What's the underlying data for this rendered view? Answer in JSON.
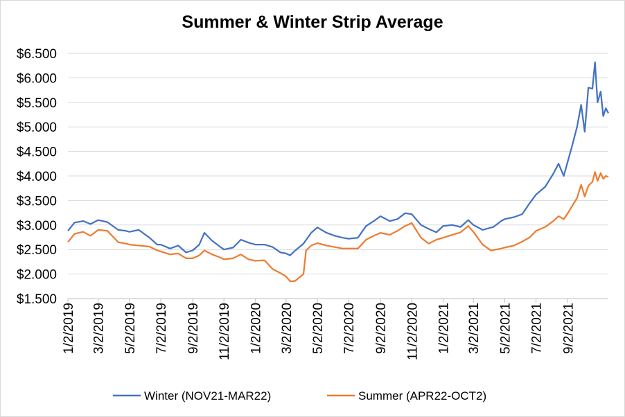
{
  "chart_data": {
    "type": "line",
    "title": "Summer & Winter Strip Average",
    "xlabel": "",
    "ylabel": "",
    "ylim": [
      1.5,
      6.5
    ],
    "y_ticks": [
      "$1.500",
      "$2.000",
      "$2.500",
      "$3.000",
      "$3.500",
      "$4.000",
      "$4.500",
      "$5.000",
      "$5.500",
      "$6.000",
      "$6.500"
    ],
    "x_ticks": [
      "1/2/2019",
      "3/2/2019",
      "5/2/2019",
      "7/2/2019",
      "9/2/2019",
      "11/2/2019",
      "1/2/2020",
      "3/2/2020",
      "5/2/2020",
      "7/2/2020",
      "9/2/2020",
      "11/2/2020",
      "1/2/2021",
      "3/2/2021",
      "5/2/2021",
      "7/2/2021",
      "9/2/2021"
    ],
    "xlim": [
      "2019-01-02",
      "2021-11-20"
    ],
    "grid": "horizontal",
    "legend_position": "bottom",
    "series": [
      {
        "name": "Winter (NOV21-MAR22)",
        "color": "#4472c4",
        "points": [
          [
            "2019-01-02",
            2.88
          ],
          [
            "2019-01-15",
            3.05
          ],
          [
            "2019-02-01",
            3.08
          ],
          [
            "2019-02-15",
            3.02
          ],
          [
            "2019-03-02",
            3.1
          ],
          [
            "2019-03-20",
            3.06
          ],
          [
            "2019-04-10",
            2.9
          ],
          [
            "2019-04-25",
            2.88
          ],
          [
            "2019-05-02",
            2.86
          ],
          [
            "2019-05-20",
            2.9
          ],
          [
            "2019-06-10",
            2.74
          ],
          [
            "2019-06-25",
            2.6
          ],
          [
            "2019-07-02",
            2.6
          ],
          [
            "2019-07-20",
            2.52
          ],
          [
            "2019-08-05",
            2.58
          ],
          [
            "2019-08-20",
            2.44
          ],
          [
            "2019-09-02",
            2.48
          ],
          [
            "2019-09-15",
            2.6
          ],
          [
            "2019-09-25",
            2.84
          ],
          [
            "2019-10-10",
            2.68
          ],
          [
            "2019-10-25",
            2.56
          ],
          [
            "2019-11-02",
            2.5
          ],
          [
            "2019-11-20",
            2.54
          ],
          [
            "2019-12-05",
            2.7
          ],
          [
            "2019-12-20",
            2.64
          ],
          [
            "2020-01-02",
            2.6
          ],
          [
            "2020-01-20",
            2.6
          ],
          [
            "2020-02-05",
            2.55
          ],
          [
            "2020-02-20",
            2.44
          ],
          [
            "2020-03-02",
            2.42
          ],
          [
            "2020-03-10",
            2.38
          ],
          [
            "2020-03-20",
            2.48
          ],
          [
            "2020-04-05",
            2.62
          ],
          [
            "2020-04-20",
            2.84
          ],
          [
            "2020-05-02",
            2.95
          ],
          [
            "2020-05-20",
            2.84
          ],
          [
            "2020-06-05",
            2.78
          ],
          [
            "2020-06-20",
            2.74
          ],
          [
            "2020-07-02",
            2.72
          ],
          [
            "2020-07-20",
            2.74
          ],
          [
            "2020-08-05",
            2.98
          ],
          [
            "2020-08-20",
            3.08
          ],
          [
            "2020-09-02",
            3.18
          ],
          [
            "2020-09-20",
            3.08
          ],
          [
            "2020-10-05",
            3.12
          ],
          [
            "2020-10-20",
            3.24
          ],
          [
            "2020-11-02",
            3.22
          ],
          [
            "2020-11-20",
            3.0
          ],
          [
            "2020-12-05",
            2.92
          ],
          [
            "2020-12-20",
            2.85
          ],
          [
            "2021-01-02",
            2.98
          ],
          [
            "2021-01-20",
            3.0
          ],
          [
            "2021-02-05",
            2.96
          ],
          [
            "2021-02-20",
            3.1
          ],
          [
            "2021-03-02",
            3.0
          ],
          [
            "2021-03-20",
            2.9
          ],
          [
            "2021-04-10",
            2.96
          ],
          [
            "2021-04-25",
            3.08
          ],
          [
            "2021-05-02",
            3.12
          ],
          [
            "2021-05-20",
            3.16
          ],
          [
            "2021-06-05",
            3.22
          ],
          [
            "2021-06-20",
            3.45
          ],
          [
            "2021-07-02",
            3.62
          ],
          [
            "2021-07-20",
            3.78
          ],
          [
            "2021-08-05",
            4.05
          ],
          [
            "2021-08-15",
            4.25
          ],
          [
            "2021-08-25",
            4.0
          ],
          [
            "2021-09-02",
            4.3
          ],
          [
            "2021-09-10",
            4.6
          ],
          [
            "2021-09-20",
            5.0
          ],
          [
            "2021-09-28",
            5.45
          ],
          [
            "2021-10-05",
            4.9
          ],
          [
            "2021-10-12",
            5.8
          ],
          [
            "2021-10-20",
            5.78
          ],
          [
            "2021-10-25",
            6.32
          ],
          [
            "2021-10-30",
            5.5
          ],
          [
            "2021-11-05",
            5.72
          ],
          [
            "2021-11-10",
            5.22
          ],
          [
            "2021-11-15",
            5.38
          ],
          [
            "2021-11-20",
            5.28
          ]
        ]
      },
      {
        "name": "Summer  (APR22-OCT2)",
        "color": "#ed7d31",
        "points": [
          [
            "2019-01-02",
            2.65
          ],
          [
            "2019-01-15",
            2.82
          ],
          [
            "2019-02-01",
            2.86
          ],
          [
            "2019-02-15",
            2.78
          ],
          [
            "2019-03-02",
            2.9
          ],
          [
            "2019-03-20",
            2.88
          ],
          [
            "2019-04-10",
            2.65
          ],
          [
            "2019-04-25",
            2.62
          ],
          [
            "2019-05-02",
            2.6
          ],
          [
            "2019-05-20",
            2.58
          ],
          [
            "2019-06-10",
            2.56
          ],
          [
            "2019-06-25",
            2.48
          ],
          [
            "2019-07-02",
            2.46
          ],
          [
            "2019-07-20",
            2.4
          ],
          [
            "2019-08-05",
            2.42
          ],
          [
            "2019-08-20",
            2.32
          ],
          [
            "2019-09-02",
            2.32
          ],
          [
            "2019-09-15",
            2.38
          ],
          [
            "2019-09-25",
            2.48
          ],
          [
            "2019-10-10",
            2.4
          ],
          [
            "2019-10-25",
            2.34
          ],
          [
            "2019-11-02",
            2.3
          ],
          [
            "2019-11-20",
            2.32
          ],
          [
            "2019-12-05",
            2.4
          ],
          [
            "2019-12-20",
            2.3
          ],
          [
            "2020-01-02",
            2.27
          ],
          [
            "2020-01-20",
            2.28
          ],
          [
            "2020-02-05",
            2.1
          ],
          [
            "2020-02-20",
            2.02
          ],
          [
            "2020-03-02",
            1.95
          ],
          [
            "2020-03-10",
            1.85
          ],
          [
            "2020-03-20",
            1.86
          ],
          [
            "2020-04-05",
            2.0
          ],
          [
            "2020-04-10",
            2.48
          ],
          [
            "2020-04-20",
            2.58
          ],
          [
            "2020-05-02",
            2.63
          ],
          [
            "2020-05-20",
            2.58
          ],
          [
            "2020-06-05",
            2.55
          ],
          [
            "2020-06-20",
            2.52
          ],
          [
            "2020-07-02",
            2.52
          ],
          [
            "2020-07-20",
            2.52
          ],
          [
            "2020-08-05",
            2.7
          ],
          [
            "2020-08-20",
            2.78
          ],
          [
            "2020-09-02",
            2.84
          ],
          [
            "2020-09-20",
            2.8
          ],
          [
            "2020-10-05",
            2.88
          ],
          [
            "2020-10-20",
            2.98
          ],
          [
            "2020-11-02",
            3.04
          ],
          [
            "2020-11-20",
            2.74
          ],
          [
            "2020-12-05",
            2.62
          ],
          [
            "2020-12-20",
            2.7
          ],
          [
            "2021-01-02",
            2.74
          ],
          [
            "2021-01-20",
            2.8
          ],
          [
            "2021-02-05",
            2.85
          ],
          [
            "2021-02-20",
            2.98
          ],
          [
            "2021-03-02",
            2.86
          ],
          [
            "2021-03-20",
            2.6
          ],
          [
            "2021-04-05",
            2.48
          ],
          [
            "2021-04-25",
            2.52
          ],
          [
            "2021-05-02",
            2.54
          ],
          [
            "2021-05-20",
            2.58
          ],
          [
            "2021-06-05",
            2.66
          ],
          [
            "2021-06-20",
            2.75
          ],
          [
            "2021-07-02",
            2.88
          ],
          [
            "2021-07-20",
            2.96
          ],
          [
            "2021-08-05",
            3.08
          ],
          [
            "2021-08-15",
            3.18
          ],
          [
            "2021-08-25",
            3.12
          ],
          [
            "2021-09-02",
            3.24
          ],
          [
            "2021-09-10",
            3.38
          ],
          [
            "2021-09-20",
            3.55
          ],
          [
            "2021-09-28",
            3.82
          ],
          [
            "2021-10-05",
            3.58
          ],
          [
            "2021-10-12",
            3.8
          ],
          [
            "2021-10-20",
            3.88
          ],
          [
            "2021-10-25",
            4.08
          ],
          [
            "2021-10-30",
            3.9
          ],
          [
            "2021-11-05",
            4.06
          ],
          [
            "2021-11-10",
            3.94
          ],
          [
            "2021-11-15",
            4.0
          ],
          [
            "2021-11-20",
            3.98
          ]
        ]
      }
    ]
  }
}
